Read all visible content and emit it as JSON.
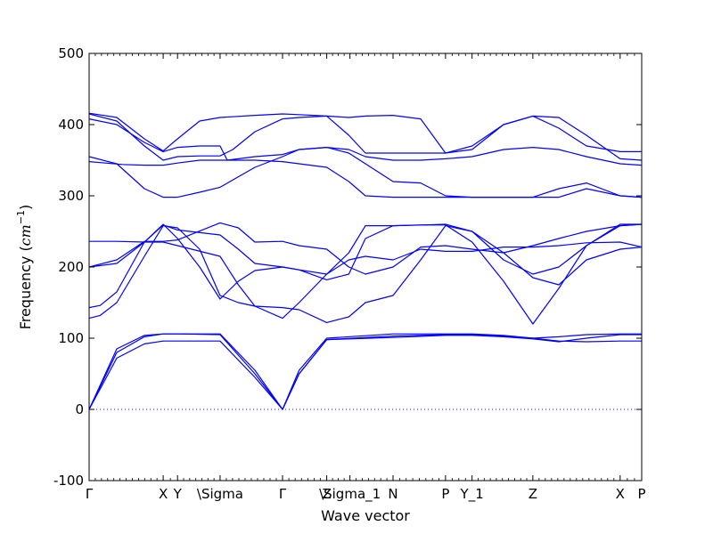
{
  "chart_data": {
    "type": "line",
    "title": "",
    "xlabel": "Wave vector",
    "ylabel_text": "Frequency (",
    "ylabel_unit": "cm",
    "ylabel_exp": "−1",
    "ylabel_close": ")",
    "ylim": [
      -100,
      500
    ],
    "yticks": [
      -100,
      0,
      100,
      200,
      300,
      400,
      500
    ],
    "xlim": [
      0,
      1
    ],
    "grid": false,
    "line_color": "#0000ff",
    "zero_line": true,
    "x_ticks": [
      {
        "x": 0.0,
        "label": "Γ"
      },
      {
        "x": 0.134,
        "label": "X"
      },
      {
        "x": 0.16,
        "label": "Y"
      },
      {
        "x": 0.237,
        "label": "\\Sigma"
      },
      {
        "x": 0.35,
        "label": "Γ"
      },
      {
        "x": 0.43,
        "label": "Z"
      },
      {
        "x": 0.472,
        "label": "\\Sigma_1"
      },
      {
        "x": 0.55,
        "label": "N"
      },
      {
        "x": 0.645,
        "label": "P"
      },
      {
        "x": 0.693,
        "label": "Y_1"
      },
      {
        "x": 0.803,
        "label": "Z"
      },
      {
        "x": 0.961,
        "label": "X"
      },
      {
        "x": 1.0,
        "label": "P"
      }
    ],
    "series": [
      {
        "x": [
          0,
          0.05,
          0.1,
          0.134,
          0.16,
          0.237,
          0.3,
          0.35,
          0.38,
          0.43,
          0.55,
          0.645,
          0.693,
          0.75,
          0.803,
          0.85,
          0.9,
          0.961,
          1.0
        ],
        "y": [
          0,
          80,
          102,
          106,
          106,
          105,
          50,
          0,
          50,
          98,
          103,
          105,
          105,
          103,
          100,
          96,
          95,
          96,
          96
        ]
      },
      {
        "x": [
          0,
          0.05,
          0.1,
          0.134,
          0.16,
          0.237,
          0.3,
          0.35,
          0.38,
          0.43,
          0.55,
          0.645,
          0.693,
          0.75,
          0.803,
          0.85,
          0.9,
          0.961,
          1.0
        ],
        "y": [
          0,
          72,
          92,
          96,
          96,
          96,
          45,
          0,
          50,
          98,
          101,
          104,
          104,
          102,
          99,
          95,
          100,
          105,
          105
        ]
      },
      {
        "x": [
          0,
          0.05,
          0.1,
          0.134,
          0.16,
          0.237,
          0.3,
          0.35,
          0.38,
          0.43,
          0.55,
          0.645,
          0.693,
          0.75,
          0.803,
          0.85,
          0.9,
          0.961,
          1.0
        ],
        "y": [
          0,
          85,
          104,
          106,
          106,
          106,
          55,
          0,
          55,
          100,
          106,
          106,
          106,
          104,
          100,
          102,
          105,
          106,
          106
        ]
      },
      {
        "x": [
          0,
          0.02,
          0.05,
          0.1,
          0.134,
          0.16,
          0.2,
          0.237,
          0.27,
          0.3,
          0.35,
          0.38,
          0.43,
          0.47,
          0.5,
          0.55,
          0.6,
          0.645,
          0.693,
          0.75,
          0.803,
          0.85,
          0.9,
          0.961,
          1.0
        ],
        "y": [
          128,
          132,
          150,
          215,
          258,
          255,
          225,
          160,
          150,
          145,
          143,
          140,
          122,
          130,
          150,
          160,
          210,
          258,
          250,
          210,
          190,
          200,
          230,
          258,
          260
        ]
      },
      {
        "x": [
          0,
          0.02,
          0.05,
          0.1,
          0.134,
          0.16,
          0.2,
          0.237,
          0.27,
          0.3,
          0.35,
          0.38,
          0.43,
          0.47,
          0.5,
          0.55,
          0.6,
          0.645,
          0.693,
          0.75,
          0.803,
          0.85,
          0.9,
          0.961,
          1.0
        ],
        "y": [
          143,
          146,
          165,
          235,
          260,
          240,
          200,
          155,
          180,
          195,
          200,
          196,
          182,
          190,
          240,
          258,
          259,
          260,
          250,
          220,
          185,
          175,
          210,
          225,
          228
        ]
      },
      {
        "x": [
          0,
          0.05,
          0.1,
          0.134,
          0.16,
          0.237,
          0.27,
          0.3,
          0.35,
          0.38,
          0.43,
          0.47,
          0.5,
          0.55,
          0.6,
          0.645,
          0.693,
          0.75,
          0.803,
          0.85,
          0.9,
          0.961,
          1.0
        ],
        "y": [
          200,
          205,
          235,
          259,
          252,
          245,
          225,
          205,
          200,
          196,
          190,
          220,
          258,
          258,
          259,
          259,
          235,
          180,
          120,
          170,
          230,
          260,
          260
        ]
      },
      {
        "x": [
          0,
          0.05,
          0.1,
          0.134,
          0.16,
          0.237,
          0.27,
          0.3,
          0.35,
          0.38,
          0.43,
          0.47,
          0.5,
          0.55,
          0.6,
          0.645,
          0.693,
          0.75,
          0.803,
          0.85,
          0.9,
          0.961,
          1.0
        ],
        "y": [
          236,
          236,
          235,
          235,
          230,
          215,
          175,
          145,
          128,
          150,
          190,
          210,
          215,
          210,
          225,
          222,
          222,
          228,
          228,
          230,
          234,
          235,
          228
        ]
      },
      {
        "x": [
          0,
          0.05,
          0.1,
          0.134,
          0.16,
          0.237,
          0.27,
          0.3,
          0.35,
          0.38,
          0.43,
          0.47,
          0.5,
          0.55,
          0.6,
          0.645,
          0.693,
          0.75,
          0.803,
          0.85,
          0.9,
          0.961,
          1.0
        ],
        "y": [
          200,
          210,
          236,
          236,
          238,
          262,
          255,
          235,
          236,
          230,
          225,
          200,
          190,
          200,
          228,
          230,
          225,
          220,
          230,
          240,
          250,
          258,
          260
        ]
      },
      {
        "x": [
          0,
          0.03,
          0.06,
          0.1,
          0.134,
          0.16,
          0.2,
          0.237,
          0.3,
          0.35,
          0.38,
          0.43,
          0.47,
          0.5,
          0.55,
          0.6,
          0.645,
          0.693,
          0.75,
          0.803,
          0.85,
          0.9,
          0.961,
          1.0
        ],
        "y": [
          348,
          346,
          344,
          343,
          343,
          346,
          350,
          350,
          350,
          348,
          345,
          340,
          320,
          300,
          298,
          298,
          298,
          298,
          298,
          298,
          310,
          318,
          300,
          298
        ]
      },
      {
        "x": [
          0,
          0.05,
          0.1,
          0.134,
          0.16,
          0.2,
          0.237,
          0.3,
          0.35,
          0.38,
          0.43,
          0.47,
          0.5,
          0.55,
          0.6,
          0.645,
          0.693,
          0.75,
          0.803,
          0.85,
          0.9,
          0.961,
          1.0
        ],
        "y": [
          355,
          345,
          310,
          298,
          298,
          305,
          312,
          340,
          355,
          365,
          368,
          360,
          345,
          320,
          318,
          300,
          298,
          298,
          298,
          298,
          310,
          300,
          298
        ]
      },
      {
        "x": [
          0,
          0.05,
          0.1,
          0.134,
          0.16,
          0.2,
          0.237,
          0.25,
          0.3,
          0.35,
          0.38,
          0.43,
          0.47,
          0.5,
          0.55,
          0.6,
          0.645,
          0.693,
          0.75,
          0.803,
          0.85,
          0.9,
          0.961,
          1.0
        ],
        "y": [
          408,
          400,
          375,
          362,
          368,
          370,
          370,
          350,
          355,
          358,
          365,
          368,
          365,
          355,
          350,
          350,
          352,
          355,
          365,
          368,
          365,
          355,
          345,
          343
        ]
      },
      {
        "x": [
          0,
          0.05,
          0.1,
          0.134,
          0.16,
          0.2,
          0.237,
          0.26,
          0.3,
          0.35,
          0.38,
          0.43,
          0.47,
          0.5,
          0.55,
          0.6,
          0.645,
          0.693,
          0.75,
          0.803,
          0.85,
          0.9,
          0.961,
          1.0
        ],
        "y": [
          415,
          405,
          370,
          350,
          355,
          356,
          356,
          365,
          390,
          408,
          410,
          412,
          385,
          360,
          360,
          360,
          360,
          370,
          400,
          412,
          395,
          370,
          362,
          362
        ]
      },
      {
        "x": [
          0,
          0.05,
          0.1,
          0.134,
          0.16,
          0.2,
          0.237,
          0.3,
          0.35,
          0.38,
          0.43,
          0.47,
          0.5,
          0.55,
          0.6,
          0.645,
          0.693,
          0.75,
          0.803,
          0.85,
          0.9,
          0.961,
          1.0
        ],
        "y": [
          416,
          410,
          380,
          363,
          380,
          405,
          410,
          413,
          415,
          414,
          412,
          410,
          412,
          413,
          408,
          360,
          365,
          400,
          412,
          410,
          385,
          352,
          350
        ]
      }
    ]
  }
}
